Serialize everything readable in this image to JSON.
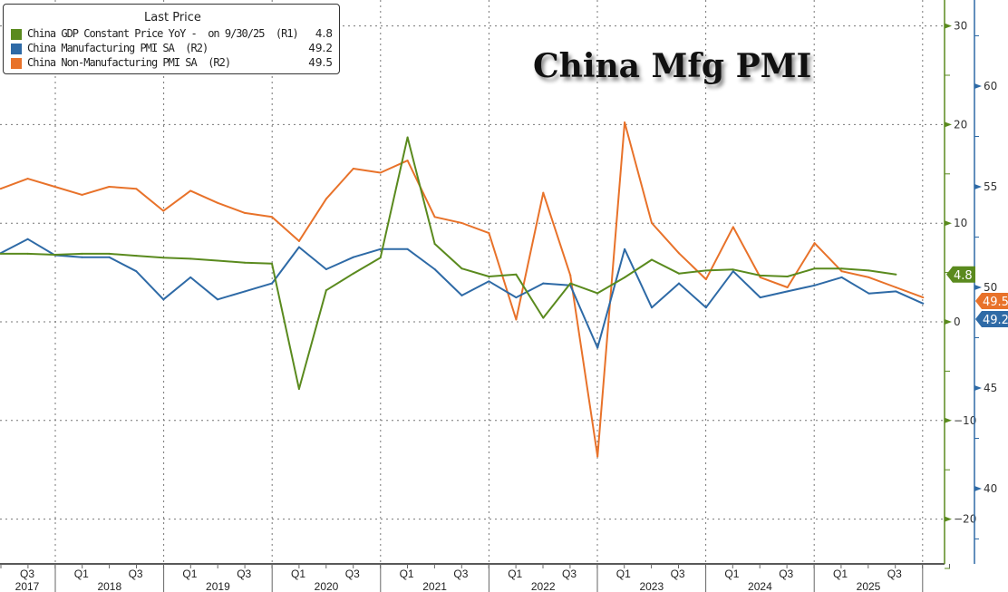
{
  "chart_data": {
    "type": "line",
    "title": "China Mfg PMI",
    "legend": {
      "header": "Last Price",
      "placement": "top-left",
      "entries": [
        {
          "label": "China GDP Constant Price YoY -  on 9/30/25  (R1)",
          "last": "4.8",
          "color": "#5a8a1e"
        },
        {
          "label": "China Manufacturing PMI SA  (R2)",
          "last": "49.2",
          "color": "#2e6aa6"
        },
        {
          "label": "China Non-Manufacturing PMI SA  (R2)",
          "last": "49.5",
          "color": "#e8722a"
        }
      ]
    },
    "x": [
      "2017 Q2",
      "2017 Q3",
      "2017 Q4",
      "2018 Q1",
      "2018 Q2",
      "2018 Q3",
      "2018 Q4",
      "2019 Q1",
      "2019 Q2",
      "2019 Q3",
      "2019 Q4",
      "2020 Q1",
      "2020 Q2",
      "2020 Q3",
      "2020 Q4",
      "2021 Q1",
      "2021 Q2",
      "2021 Q3",
      "2021 Q4",
      "2022 Q1",
      "2022 Q2",
      "2022 Q3",
      "2022 Q4",
      "2023 Q1",
      "2023 Q2",
      "2023 Q3",
      "2023 Q4",
      "2024 Q1",
      "2024 Q2",
      "2024 Q3",
      "2024 Q4",
      "2025 Q1",
      "2025 Q2",
      "2025 Q3",
      "2025 Q4"
    ],
    "x_tick_labels": {
      "quarters": [
        "Q3",
        "Q1",
        "Q3",
        "Q1",
        "Q3",
        "Q1",
        "Q3",
        "Q1",
        "Q3",
        "Q1",
        "Q3",
        "Q1",
        "Q3",
        "Q1",
        "Q3",
        "Q1",
        "Q3"
      ],
      "years": [
        "2017",
        "2018",
        "2019",
        "2020",
        "2021",
        "2022",
        "2023",
        "2024",
        "2025"
      ]
    },
    "axes": {
      "R1": {
        "ylim": [
          -25,
          32
        ],
        "ticks": [
          30,
          20,
          10,
          0,
          -10,
          -20
        ],
        "color": "#5a8a1e"
      },
      "R2": {
        "ylim": [
          37.2,
          63.3
        ],
        "ticks": [
          60,
          55,
          50,
          45,
          40
        ],
        "color": "#2e6aa6"
      }
    },
    "grid": true,
    "series": [
      {
        "name": "China GDP Constant Price YoY",
        "axis": "R1",
        "color": "#5a8a1e",
        "values": [
          6.9,
          6.9,
          6.8,
          6.9,
          6.9,
          6.7,
          6.5,
          6.4,
          6.2,
          6.0,
          5.9,
          -6.8,
          3.2,
          4.9,
          6.5,
          18.7,
          7.9,
          5.4,
          4.6,
          4.8,
          0.4,
          3.9,
          2.9,
          4.5,
          6.3,
          4.9,
          5.2,
          5.3,
          4.7,
          4.6,
          5.4,
          5.4,
          5.2,
          4.8,
          null
        ]
      },
      {
        "name": "China Manufacturing PMI SA",
        "axis": "R2",
        "color": "#2e6aa6",
        "values": [
          51.7,
          52.4,
          51.6,
          51.5,
          51.5,
          50.8,
          49.4,
          50.5,
          49.4,
          49.8,
          50.2,
          52.0,
          50.9,
          51.5,
          51.9,
          51.9,
          50.9,
          49.6,
          50.3,
          49.5,
          50.2,
          50.1,
          47.0,
          51.9,
          49.0,
          50.2,
          49.0,
          50.8,
          49.5,
          49.8,
          50.1,
          50.5,
          49.7,
          49.8,
          49.2
        ]
      },
      {
        "name": "China Non-Manufacturing PMI SA",
        "axis": "R2",
        "color": "#e8722a",
        "values": [
          54.9,
          55.4,
          55.0,
          54.6,
          55.0,
          54.9,
          53.8,
          54.8,
          54.2,
          53.7,
          53.5,
          52.3,
          54.4,
          55.9,
          55.7,
          56.3,
          53.5,
          53.2,
          52.7,
          48.4,
          54.7,
          50.6,
          41.6,
          58.2,
          53.2,
          51.7,
          50.4,
          53.0,
          50.5,
          50.0,
          52.2,
          50.8,
          50.5,
          50.0,
          49.5
        ]
      }
    ]
  }
}
